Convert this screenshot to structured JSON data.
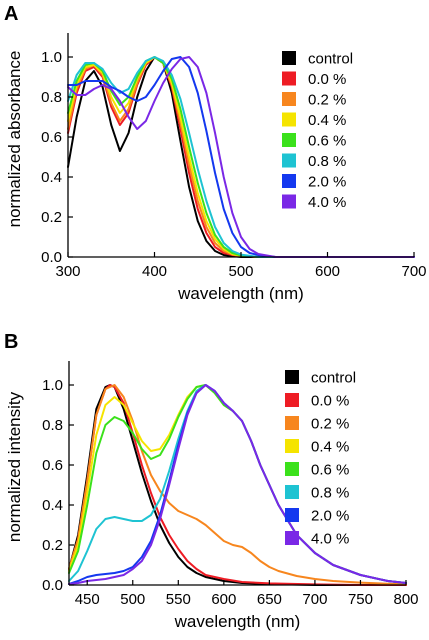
{
  "colors": {
    "control": "#000000",
    "0.0 %": "#ee1c24",
    "0.2 %": "#f7861e",
    "0.4 %": "#f5e400",
    "0.6 %": "#3be11b",
    "0.8 %": "#1ec3d2",
    "2.0 %": "#1438ef",
    "4.0 %": "#7a28e6"
  },
  "chart_data": [
    {
      "panel": "A",
      "type": "line",
      "xlabel": "wavelength (nm)",
      "ylabel": "normalized absorbance",
      "xlim": [
        300,
        700
      ],
      "ylim": [
        0,
        1.1
      ],
      "xticks": [
        300,
        400,
        500,
        600,
        700
      ],
      "yticks": [
        0.0,
        0.2,
        0.4,
        0.6,
        0.8,
        1.0
      ],
      "legend": [
        "control",
        "0.0 %",
        "0.2 %",
        "0.4 %",
        "0.6 %",
        "0.8 %",
        "2.0 %",
        "4.0 %"
      ],
      "legend_position": "right",
      "series": [
        {
          "name": "control",
          "x": [
            300,
            310,
            320,
            330,
            340,
            350,
            360,
            370,
            380,
            390,
            400,
            410,
            420,
            430,
            440,
            450,
            460,
            470,
            480,
            490,
            500,
            520,
            560,
            620,
            700
          ],
          "y": [
            0.45,
            0.7,
            0.88,
            0.93,
            0.85,
            0.66,
            0.53,
            0.62,
            0.8,
            0.93,
            1.0,
            0.97,
            0.82,
            0.58,
            0.35,
            0.18,
            0.08,
            0.03,
            0.01,
            0.005,
            0,
            0,
            0,
            0,
            0
          ]
        },
        {
          "name": "0.0 %",
          "x": [
            300,
            310,
            320,
            330,
            340,
            350,
            360,
            370,
            380,
            390,
            400,
            410,
            420,
            430,
            440,
            450,
            460,
            470,
            480,
            490,
            500,
            520,
            560,
            620,
            700
          ],
          "y": [
            0.62,
            0.82,
            0.93,
            0.95,
            0.9,
            0.75,
            0.66,
            0.72,
            0.86,
            0.96,
            1.0,
            0.97,
            0.85,
            0.64,
            0.42,
            0.24,
            0.12,
            0.05,
            0.02,
            0.01,
            0.005,
            0,
            0,
            0,
            0
          ]
        },
        {
          "name": "0.2 %",
          "x": [
            300,
            310,
            320,
            330,
            340,
            350,
            360,
            370,
            380,
            390,
            400,
            410,
            420,
            430,
            440,
            450,
            460,
            470,
            480,
            490,
            500,
            520,
            560,
            620,
            700
          ],
          "y": [
            0.64,
            0.84,
            0.94,
            0.96,
            0.91,
            0.77,
            0.68,
            0.74,
            0.87,
            0.97,
            1.0,
            0.97,
            0.86,
            0.67,
            0.46,
            0.28,
            0.15,
            0.07,
            0.03,
            0.012,
            0.005,
            0,
            0,
            0,
            0
          ]
        },
        {
          "name": "0.4 %",
          "x": [
            300,
            310,
            320,
            330,
            340,
            350,
            360,
            370,
            380,
            390,
            400,
            410,
            420,
            430,
            440,
            450,
            460,
            470,
            480,
            490,
            500,
            520,
            560,
            620,
            700
          ],
          "y": [
            0.68,
            0.86,
            0.95,
            0.96,
            0.92,
            0.8,
            0.72,
            0.77,
            0.89,
            0.97,
            1.0,
            0.97,
            0.87,
            0.7,
            0.5,
            0.32,
            0.18,
            0.09,
            0.04,
            0.015,
            0.006,
            0,
            0,
            0,
            0
          ]
        },
        {
          "name": "0.6 %",
          "x": [
            300,
            310,
            320,
            330,
            340,
            350,
            360,
            370,
            380,
            390,
            400,
            410,
            420,
            430,
            440,
            450,
            460,
            470,
            480,
            490,
            500,
            520,
            560,
            620,
            700
          ],
          "y": [
            0.72,
            0.88,
            0.96,
            0.97,
            0.93,
            0.83,
            0.76,
            0.8,
            0.9,
            0.98,
            1.0,
            0.97,
            0.89,
            0.74,
            0.55,
            0.37,
            0.22,
            0.11,
            0.05,
            0.02,
            0.008,
            0,
            0,
            0,
            0
          ]
        },
        {
          "name": "0.8 %",
          "x": [
            300,
            310,
            320,
            330,
            340,
            350,
            360,
            370,
            380,
            390,
            400,
            410,
            420,
            430,
            440,
            450,
            460,
            470,
            480,
            490,
            500,
            520,
            560,
            620,
            700
          ],
          "y": [
            0.78,
            0.91,
            0.97,
            0.97,
            0.94,
            0.87,
            0.82,
            0.84,
            0.92,
            0.98,
            1.0,
            0.98,
            0.91,
            0.79,
            0.62,
            0.44,
            0.28,
            0.15,
            0.07,
            0.03,
            0.012,
            0,
            0,
            0,
            0
          ]
        },
        {
          "name": "2.0 %",
          "x": [
            300,
            310,
            320,
            330,
            340,
            350,
            360,
            370,
            380,
            390,
            400,
            410,
            420,
            430,
            440,
            450,
            460,
            470,
            480,
            490,
            500,
            510,
            520,
            540,
            560,
            620,
            700
          ],
          "y": [
            0.86,
            0.86,
            0.88,
            0.88,
            0.88,
            0.85,
            0.83,
            0.8,
            0.78,
            0.8,
            0.86,
            0.93,
            0.99,
            1.0,
            0.95,
            0.82,
            0.63,
            0.42,
            0.24,
            0.12,
            0.05,
            0.02,
            0.01,
            0,
            0,
            0,
            0
          ]
        },
        {
          "name": "4.0 %",
          "x": [
            300,
            310,
            320,
            330,
            340,
            350,
            360,
            370,
            380,
            390,
            400,
            410,
            420,
            430,
            440,
            450,
            460,
            470,
            480,
            490,
            500,
            510,
            520,
            540,
            560,
            620,
            700
          ],
          "y": [
            0.85,
            0.81,
            0.81,
            0.84,
            0.86,
            0.84,
            0.78,
            0.7,
            0.64,
            0.68,
            0.78,
            0.87,
            0.94,
            0.99,
            1.0,
            0.95,
            0.82,
            0.62,
            0.4,
            0.22,
            0.1,
            0.04,
            0.015,
            0,
            0,
            0,
            0
          ]
        }
      ]
    },
    {
      "panel": "B",
      "type": "line",
      "xlabel": "wavelength (nm)",
      "ylabel": "normalized intensity",
      "xlim": [
        430,
        800
      ],
      "ylim": [
        0,
        1.1
      ],
      "xticks": [
        450,
        500,
        550,
        600,
        650,
        700,
        750,
        800
      ],
      "yticks": [
        0.0,
        0.2,
        0.4,
        0.6,
        0.8,
        1.0
      ],
      "legend": [
        "control",
        "0.0 %",
        "0.2 %",
        "0.4 %",
        "0.6 %",
        "0.8 %",
        "2.0 %",
        "4.0 %"
      ],
      "legend_position": "right",
      "series": [
        {
          "name": "control",
          "x": [
            430,
            440,
            450,
            460,
            470,
            475,
            480,
            490,
            500,
            510,
            520,
            530,
            540,
            550,
            560,
            570,
            580,
            600,
            620,
            650,
            700,
            750,
            800
          ],
          "y": [
            0.08,
            0.25,
            0.55,
            0.88,
            0.99,
            1.0,
            0.99,
            0.88,
            0.72,
            0.56,
            0.42,
            0.3,
            0.21,
            0.14,
            0.09,
            0.06,
            0.04,
            0.02,
            0.01,
            0.005,
            0,
            0,
            0
          ]
        },
        {
          "name": "0.0 %",
          "x": [
            430,
            440,
            450,
            460,
            470,
            475,
            480,
            490,
            500,
            510,
            520,
            530,
            540,
            550,
            560,
            570,
            580,
            600,
            620,
            650,
            700,
            750,
            800
          ],
          "y": [
            0.08,
            0.23,
            0.52,
            0.85,
            0.98,
            1.0,
            0.99,
            0.91,
            0.76,
            0.6,
            0.46,
            0.34,
            0.25,
            0.18,
            0.12,
            0.08,
            0.05,
            0.03,
            0.015,
            0.008,
            0.003,
            0,
            0
          ]
        },
        {
          "name": "0.2 %",
          "x": [
            430,
            440,
            450,
            460,
            470,
            480,
            490,
            500,
            510,
            520,
            530,
            540,
            550,
            560,
            570,
            580,
            590,
            600,
            610,
            620,
            630,
            640,
            650,
            660,
            680,
            700,
            720,
            750,
            780,
            800
          ],
          "y": [
            0.08,
            0.23,
            0.52,
            0.85,
            0.98,
            1.0,
            0.94,
            0.82,
            0.67,
            0.55,
            0.47,
            0.41,
            0.37,
            0.35,
            0.33,
            0.3,
            0.26,
            0.22,
            0.2,
            0.19,
            0.16,
            0.12,
            0.09,
            0.07,
            0.045,
            0.03,
            0.02,
            0.012,
            0.006,
            0.004
          ]
        },
        {
          "name": "0.4 %",
          "x": [
            430,
            440,
            450,
            460,
            470,
            480,
            490,
            500,
            510,
            520,
            530,
            540,
            550,
            560,
            570,
            580,
            590,
            600,
            610,
            620,
            630,
            640,
            660,
            680,
            700,
            720,
            750,
            780,
            800
          ],
          "y": [
            0.07,
            0.2,
            0.46,
            0.75,
            0.9,
            0.94,
            0.9,
            0.81,
            0.72,
            0.67,
            0.68,
            0.75,
            0.85,
            0.94,
            0.99,
            1.0,
            0.96,
            0.9,
            0.87,
            0.82,
            0.72,
            0.6,
            0.4,
            0.25,
            0.16,
            0.1,
            0.05,
            0.02,
            0.01
          ]
        },
        {
          "name": "0.6 %",
          "x": [
            430,
            440,
            450,
            460,
            470,
            480,
            490,
            500,
            510,
            520,
            530,
            540,
            550,
            560,
            570,
            580,
            590,
            600,
            610,
            620,
            630,
            640,
            660,
            680,
            700,
            720,
            750,
            780,
            800
          ],
          "y": [
            0.06,
            0.17,
            0.4,
            0.66,
            0.8,
            0.84,
            0.82,
            0.76,
            0.68,
            0.63,
            0.65,
            0.73,
            0.84,
            0.93,
            0.99,
            1.0,
            0.96,
            0.9,
            0.87,
            0.82,
            0.72,
            0.6,
            0.4,
            0.25,
            0.16,
            0.1,
            0.05,
            0.02,
            0.01
          ]
        },
        {
          "name": "0.8 %",
          "x": [
            430,
            440,
            450,
            460,
            470,
            480,
            490,
            500,
            510,
            520,
            530,
            540,
            550,
            560,
            570,
            580,
            590,
            600,
            610,
            620,
            630,
            640,
            660,
            680,
            700,
            720,
            750,
            780,
            800
          ],
          "y": [
            0.02,
            0.07,
            0.17,
            0.28,
            0.33,
            0.34,
            0.33,
            0.32,
            0.32,
            0.35,
            0.43,
            0.57,
            0.73,
            0.87,
            0.97,
            1.0,
            0.97,
            0.91,
            0.87,
            0.82,
            0.72,
            0.6,
            0.4,
            0.25,
            0.16,
            0.1,
            0.05,
            0.02,
            0.01
          ]
        },
        {
          "name": "2.0 %",
          "x": [
            430,
            440,
            450,
            460,
            470,
            480,
            490,
            500,
            510,
            520,
            530,
            540,
            550,
            560,
            570,
            580,
            590,
            600,
            610,
            620,
            630,
            640,
            660,
            680,
            700,
            720,
            750,
            780,
            800
          ],
          "y": [
            0.005,
            0.02,
            0.04,
            0.05,
            0.055,
            0.06,
            0.07,
            0.09,
            0.14,
            0.22,
            0.35,
            0.52,
            0.7,
            0.86,
            0.96,
            1.0,
            0.97,
            0.91,
            0.87,
            0.82,
            0.72,
            0.6,
            0.4,
            0.25,
            0.16,
            0.1,
            0.05,
            0.02,
            0.01
          ]
        },
        {
          "name": "4.0 %",
          "x": [
            430,
            440,
            450,
            460,
            470,
            480,
            490,
            500,
            510,
            520,
            530,
            540,
            550,
            560,
            570,
            580,
            590,
            600,
            610,
            620,
            630,
            640,
            660,
            680,
            700,
            720,
            750,
            780,
            800
          ],
          "y": [
            0.005,
            0.01,
            0.02,
            0.025,
            0.03,
            0.04,
            0.05,
            0.08,
            0.12,
            0.2,
            0.33,
            0.5,
            0.68,
            0.85,
            0.96,
            1.0,
            0.97,
            0.91,
            0.87,
            0.82,
            0.72,
            0.6,
            0.4,
            0.25,
            0.16,
            0.1,
            0.05,
            0.02,
            0.01
          ]
        }
      ]
    }
  ]
}
